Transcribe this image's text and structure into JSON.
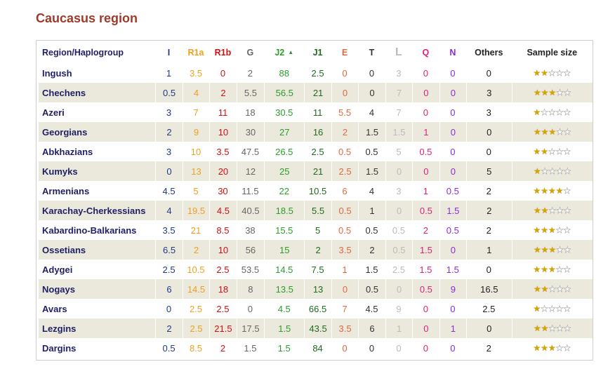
{
  "title": "Caucasus region",
  "columns": [
    {
      "key": "region",
      "label": "Region/Haplogroup",
      "color": "#1f1f66"
    },
    {
      "key": "I",
      "label": "I",
      "color": "#1f3a8a"
    },
    {
      "key": "R1a",
      "label": "R1a",
      "color": "#f0a020"
    },
    {
      "key": "R1b",
      "label": "R1b",
      "color": "#d01010"
    },
    {
      "key": "G",
      "label": "G",
      "color": "#666666"
    },
    {
      "key": "J2",
      "label": "J2",
      "color": "#2a9d2a",
      "sort_icon": "▲"
    },
    {
      "key": "J1",
      "label": "J1",
      "color": "#1e6b1e"
    },
    {
      "key": "E",
      "label": "E",
      "color": "#e06a40"
    },
    {
      "key": "T",
      "label": "T",
      "color": "#333333"
    },
    {
      "key": "L",
      "label": "L",
      "color": "#bbbbbb"
    },
    {
      "key": "Q",
      "label": "Q",
      "color": "#e0207a"
    },
    {
      "key": "N",
      "label": "N",
      "color": "#8a2be2"
    },
    {
      "key": "Others",
      "label": "Others",
      "color": "#222222"
    },
    {
      "key": "sample",
      "label": "Sample size",
      "color": "#222222"
    }
  ],
  "rows": [
    {
      "region": "Ingush",
      "values": [
        "1",
        "3.5",
        "0",
        "2",
        "88",
        "2.5",
        "0",
        "0",
        "3",
        "0",
        "0",
        "0"
      ],
      "stars": 2
    },
    {
      "region": "Chechens",
      "values": [
        "0.5",
        "4",
        "2",
        "5.5",
        "56.5",
        "21",
        "0",
        "0",
        "7",
        "0",
        "0",
        "3"
      ],
      "stars": 3
    },
    {
      "region": "Azeri",
      "values": [
        "3",
        "7",
        "11",
        "18",
        "30.5",
        "11",
        "5.5",
        "4",
        "7",
        "0",
        "0",
        "3"
      ],
      "stars": 1
    },
    {
      "region": "Georgians",
      "values": [
        "2",
        "9",
        "10",
        "30",
        "27",
        "16",
        "2",
        "1.5",
        "1.5",
        "1",
        "0",
        "0"
      ],
      "stars": 3
    },
    {
      "region": "Abkhazians",
      "values": [
        "3",
        "10",
        "3.5",
        "47.5",
        "26.5",
        "2.5",
        "0.5",
        "0.5",
        "5",
        "0.5",
        "0",
        "0"
      ],
      "stars": 2
    },
    {
      "region": "Kumyks",
      "values": [
        "0",
        "13",
        "20",
        "12",
        "25",
        "21",
        "2.5",
        "1.5",
        "0",
        "0",
        "0",
        "5"
      ],
      "stars": 1
    },
    {
      "region": "Armenians",
      "values": [
        "4.5",
        "5",
        "30",
        "11.5",
        "22",
        "10.5",
        "6",
        "4",
        "3",
        "1",
        "0.5",
        "2"
      ],
      "stars": 4
    },
    {
      "region": "Karachay-Cherkessians",
      "values": [
        "4",
        "19.5",
        "4.5",
        "40.5",
        "18.5",
        "5.5",
        "0.5",
        "1",
        "0",
        "0.5",
        "1.5",
        "2"
      ],
      "stars": 2
    },
    {
      "region": "Kabardino-Balkarians",
      "values": [
        "3.5",
        "21",
        "8.5",
        "38",
        "15.5",
        "5",
        "0.5",
        "0.5",
        "0.5",
        "2",
        "0.5",
        "2"
      ],
      "stars": 3
    },
    {
      "region": "Ossetians",
      "values": [
        "6.5",
        "2",
        "10",
        "56",
        "15",
        "2",
        "3.5",
        "2",
        "0.5",
        "1.5",
        "0",
        "1"
      ],
      "stars": 3
    },
    {
      "region": "Adygei",
      "values": [
        "2.5",
        "10.5",
        "2.5",
        "53.5",
        "14.5",
        "7.5",
        "1",
        "1.5",
        "2.5",
        "1.5",
        "1.5",
        "0"
      ],
      "stars": 3
    },
    {
      "region": "Nogays",
      "values": [
        "6",
        "14.5",
        "18",
        "8",
        "13.5",
        "13",
        "0",
        "0.5",
        "0",
        "0.5",
        "9",
        "16.5"
      ],
      "stars": 2
    },
    {
      "region": "Avars",
      "values": [
        "0",
        "2.5",
        "2.5",
        "0",
        "4.5",
        "66.5",
        "7",
        "4.5",
        "9",
        "0",
        "0",
        "2.5"
      ],
      "stars": 1
    },
    {
      "region": "Lezgins",
      "values": [
        "2",
        "2.5",
        "21.5",
        "17.5",
        "1.5",
        "43.5",
        "3.5",
        "6",
        "1",
        "0",
        "1",
        "0"
      ],
      "stars": 2
    },
    {
      "region": "Dargins",
      "values": [
        "0.5",
        "8.5",
        "2",
        "1.5",
        "1.5",
        "84",
        "0",
        "0",
        "0",
        "0",
        "0",
        "2"
      ],
      "stars": 3
    }
  ],
  "max_stars": 5,
  "colors": {
    "title": "#9e3a2b",
    "stripe": "#ebe8dc",
    "star_filled": "#d8a200",
    "border": "#cfcfcf"
  }
}
